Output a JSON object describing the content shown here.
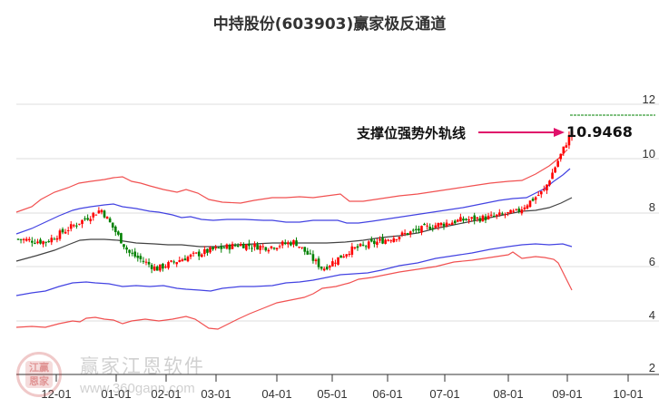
{
  "title": "中持股份(603903)赢家极反通道",
  "annotation": {
    "label": "支撑位强势外轨线",
    "value": "10.9468",
    "arrow_color": "#e0106a"
  },
  "watermark": {
    "name": "赢家江恩软件",
    "url": "www.360gann.com",
    "logo_chars": [
      "江",
      "赢",
      "恩",
      "家"
    ]
  },
  "colors": {
    "up": "#ff0000",
    "down": "#008000",
    "outer_band": "#ee3333",
    "inner_band": "#2222dd",
    "mid_line": "#222222",
    "grid": "#dddddd",
    "ref_line": "#008000"
  },
  "chart_data": {
    "type": "candlestick",
    "title": "中持股份(603903)赢家极反通道",
    "xlabel": "",
    "ylabel": "",
    "ylim": [
      2,
      12.3
    ],
    "y_ticks": [
      2,
      4,
      6,
      8,
      10,
      12
    ],
    "x_ticks": [
      "12-01",
      "01-01",
      "02-01",
      "03-01",
      "04-01",
      "05-01",
      "06-01",
      "07-01",
      "08-01",
      "09-01",
      "10-01"
    ],
    "grid": true,
    "legend": null,
    "series": [
      {
        "name": "外轨上线",
        "color": "#ee3333",
        "x": [
          0,
          5,
          10,
          15,
          20,
          25,
          30,
          35,
          40,
          45,
          50,
          55,
          60,
          65,
          70,
          75,
          80,
          85,
          90,
          95,
          100
        ],
        "values": [
          7.8,
          8.3,
          8.7,
          9.0,
          9.2,
          9.4,
          9.4,
          9.2,
          9.1,
          9.0,
          9.0,
          8.7,
          8.6,
          8.7,
          8.7,
          8.75,
          8.9,
          9.3,
          9.6,
          10.2,
          10.9
        ]
      },
      {
        "name": "内轨上线",
        "color": "#2222dd",
        "x": [
          0,
          5,
          10,
          15,
          20,
          25,
          30,
          35,
          40,
          45,
          50,
          55,
          60,
          65,
          70,
          75,
          80,
          85,
          90,
          95,
          100
        ],
        "values": [
          7.2,
          7.6,
          8.0,
          8.5,
          8.6,
          8.7,
          8.7,
          8.5,
          8.4,
          8.3,
          8.3,
          8.0,
          8.0,
          8.1,
          8.1,
          8.3,
          8.5,
          8.7,
          8.8,
          9.0,
          9.8
        ]
      },
      {
        "name": "中轨",
        "color": "#222222",
        "x": [
          0,
          5,
          10,
          15,
          20,
          25,
          30,
          35,
          40,
          45,
          50,
          55,
          60,
          65,
          70,
          75,
          80,
          85,
          90,
          95,
          100
        ],
        "values": [
          6.0,
          6.3,
          6.7,
          7.0,
          7.1,
          7.1,
          7.0,
          6.9,
          6.7,
          6.6,
          6.6,
          6.6,
          6.7,
          6.8,
          6.9,
          7.2,
          7.4,
          7.6,
          7.8,
          8.1,
          8.5
        ]
      },
      {
        "name": "内轨下线",
        "color": "#2222dd",
        "x": [
          0,
          5,
          10,
          15,
          20,
          25,
          30,
          35,
          40,
          45,
          50,
          55,
          60,
          65,
          70,
          75,
          80,
          85,
          90,
          95,
          100
        ],
        "values": [
          4.9,
          5.0,
          5.3,
          5.6,
          5.6,
          5.4,
          5.5,
          5.3,
          5.4,
          5.2,
          5.1,
          5.4,
          5.6,
          5.8,
          5.8,
          6.1,
          6.4,
          6.6,
          6.7,
          6.6,
          6.6
        ]
      },
      {
        "name": "外轨下线",
        "color": "#ee3333",
        "x": [
          0,
          5,
          10,
          15,
          20,
          25,
          30,
          35,
          40,
          45,
          50,
          55,
          60,
          65,
          70,
          75,
          80,
          85,
          90,
          95,
          100
        ],
        "values": [
          3.8,
          3.8,
          3.9,
          4.2,
          4.4,
          4.2,
          4.3,
          4.2,
          4.4,
          3.8,
          3.9,
          4.2,
          4.8,
          5.1,
          5.3,
          5.6,
          5.8,
          5.9,
          5.8,
          5.7,
          5.2
        ]
      },
      {
        "name": "收盘价",
        "color": "#ff0000",
        "x": [
          0,
          5,
          10,
          15,
          20,
          25,
          30,
          35,
          40,
          45,
          50,
          55,
          60,
          65,
          70,
          75,
          80,
          85,
          90,
          95,
          100
        ],
        "values": [
          7.0,
          6.9,
          7.5,
          8.1,
          6.5,
          5.9,
          6.3,
          6.6,
          6.8,
          6.7,
          6.9,
          5.9,
          6.6,
          6.9,
          7.2,
          7.5,
          7.7,
          7.8,
          8.0,
          8.8,
          11.0
        ]
      }
    ],
    "reference_line": {
      "value": 11.4,
      "color": "#008000",
      "style": "dashed"
    },
    "annotations": [
      {
        "text": "支撑位强势外轨线",
        "value": 10.9468
      }
    ]
  }
}
